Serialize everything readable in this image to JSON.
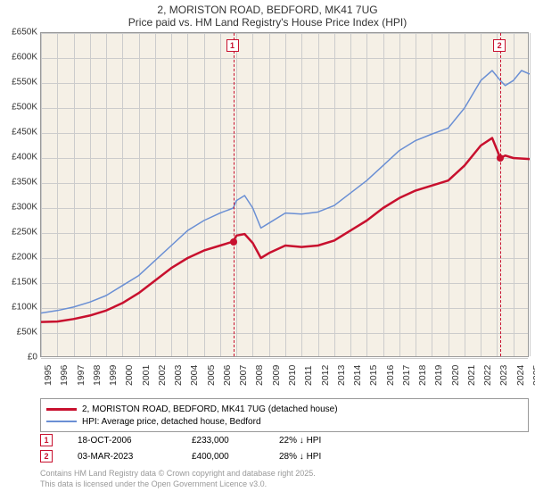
{
  "title_line1": "2, MORISTON ROAD, BEDFORD, MK41 7UG",
  "title_line2": "Price paid vs. HM Land Registry's House Price Index (HPI)",
  "chart": {
    "type": "line",
    "plot_bg": "#f5f0e6",
    "grid_color": "#cccccc",
    "y": {
      "min": 0,
      "max": 650000,
      "step": 50000,
      "labels": [
        "£0",
        "£50K",
        "£100K",
        "£150K",
        "£200K",
        "£250K",
        "£300K",
        "£350K",
        "£400K",
        "£450K",
        "£500K",
        "£550K",
        "£600K",
        "£650K"
      ]
    },
    "x": {
      "min": 1995,
      "max": 2025,
      "step": 1,
      "labels": [
        "1995",
        "1996",
        "1997",
        "1998",
        "1999",
        "2000",
        "2001",
        "2002",
        "2003",
        "2004",
        "2005",
        "2006",
        "2007",
        "2008",
        "2009",
        "2010",
        "2011",
        "2012",
        "2013",
        "2014",
        "2015",
        "2016",
        "2017",
        "2018",
        "2019",
        "2020",
        "2021",
        "2022",
        "2023",
        "2024",
        "2025"
      ]
    },
    "series": [
      {
        "name": "2, MORISTON ROAD, BEDFORD, MK41 7UG (detached house)",
        "color": "#c8102e",
        "width": 2.5,
        "data": [
          [
            1995,
            72000
          ],
          [
            1996,
            73000
          ],
          [
            1997,
            78000
          ],
          [
            1998,
            85000
          ],
          [
            1999,
            95000
          ],
          [
            2000,
            110000
          ],
          [
            2001,
            130000
          ],
          [
            2002,
            155000
          ],
          [
            2003,
            180000
          ],
          [
            2004,
            200000
          ],
          [
            2005,
            215000
          ],
          [
            2006,
            225000
          ],
          [
            2006.8,
            233000
          ],
          [
            2007,
            245000
          ],
          [
            2007.5,
            248000
          ],
          [
            2008,
            230000
          ],
          [
            2008.5,
            200000
          ],
          [
            2009,
            210000
          ],
          [
            2010,
            225000
          ],
          [
            2011,
            222000
          ],
          [
            2012,
            225000
          ],
          [
            2013,
            235000
          ],
          [
            2014,
            255000
          ],
          [
            2015,
            275000
          ],
          [
            2016,
            300000
          ],
          [
            2017,
            320000
          ],
          [
            2018,
            335000
          ],
          [
            2019,
            345000
          ],
          [
            2020,
            355000
          ],
          [
            2021,
            385000
          ],
          [
            2022,
            425000
          ],
          [
            2022.7,
            440000
          ],
          [
            2023.2,
            400000
          ],
          [
            2023.5,
            405000
          ],
          [
            2024,
            400000
          ],
          [
            2025,
            398000
          ]
        ]
      },
      {
        "name": "HPI: Average price, detached house, Bedford",
        "color": "#6a8fd4",
        "width": 1.5,
        "data": [
          [
            1995,
            90000
          ],
          [
            1996,
            95000
          ],
          [
            1997,
            102000
          ],
          [
            1998,
            112000
          ],
          [
            1999,
            125000
          ],
          [
            2000,
            145000
          ],
          [
            2001,
            165000
          ],
          [
            2002,
            195000
          ],
          [
            2003,
            225000
          ],
          [
            2004,
            255000
          ],
          [
            2005,
            275000
          ],
          [
            2006,
            290000
          ],
          [
            2006.8,
            300000
          ],
          [
            2007,
            315000
          ],
          [
            2007.5,
            325000
          ],
          [
            2008,
            300000
          ],
          [
            2008.5,
            260000
          ],
          [
            2009,
            270000
          ],
          [
            2010,
            290000
          ],
          [
            2011,
            288000
          ],
          [
            2012,
            292000
          ],
          [
            2013,
            305000
          ],
          [
            2014,
            330000
          ],
          [
            2015,
            355000
          ],
          [
            2016,
            385000
          ],
          [
            2017,
            415000
          ],
          [
            2018,
            435000
          ],
          [
            2019,
            448000
          ],
          [
            2020,
            460000
          ],
          [
            2021,
            500000
          ],
          [
            2022,
            555000
          ],
          [
            2022.7,
            575000
          ],
          [
            2023.2,
            555000
          ],
          [
            2023.5,
            545000
          ],
          [
            2024,
            555000
          ],
          [
            2024.5,
            575000
          ],
          [
            2025,
            568000
          ]
        ]
      }
    ],
    "markers": [
      {
        "num": "1",
        "year": 2006.8,
        "color": "#c8102e"
      },
      {
        "num": "2",
        "year": 2023.2,
        "color": "#c8102e"
      }
    ],
    "price_points": [
      {
        "year": 2006.8,
        "value": 233000,
        "color": "#c8102e"
      },
      {
        "year": 2023.2,
        "value": 400000,
        "color": "#c8102e"
      }
    ]
  },
  "legend": [
    {
      "color": "#c8102e",
      "width": 3,
      "label": "2, MORISTON ROAD, BEDFORD, MK41 7UG (detached house)"
    },
    {
      "color": "#6a8fd4",
      "width": 2,
      "label": "HPI: Average price, detached house, Bedford"
    }
  ],
  "points": [
    {
      "num": "1",
      "color": "#c8102e",
      "date": "18-OCT-2006",
      "price": "£233,000",
      "diff": "22% ↓ HPI"
    },
    {
      "num": "2",
      "color": "#c8102e",
      "date": "03-MAR-2023",
      "price": "£400,000",
      "diff": "28% ↓ HPI"
    }
  ],
  "footer_line1": "Contains HM Land Registry data © Crown copyright and database right 2025.",
  "footer_line2": "This data is licensed under the Open Government Licence v3.0."
}
